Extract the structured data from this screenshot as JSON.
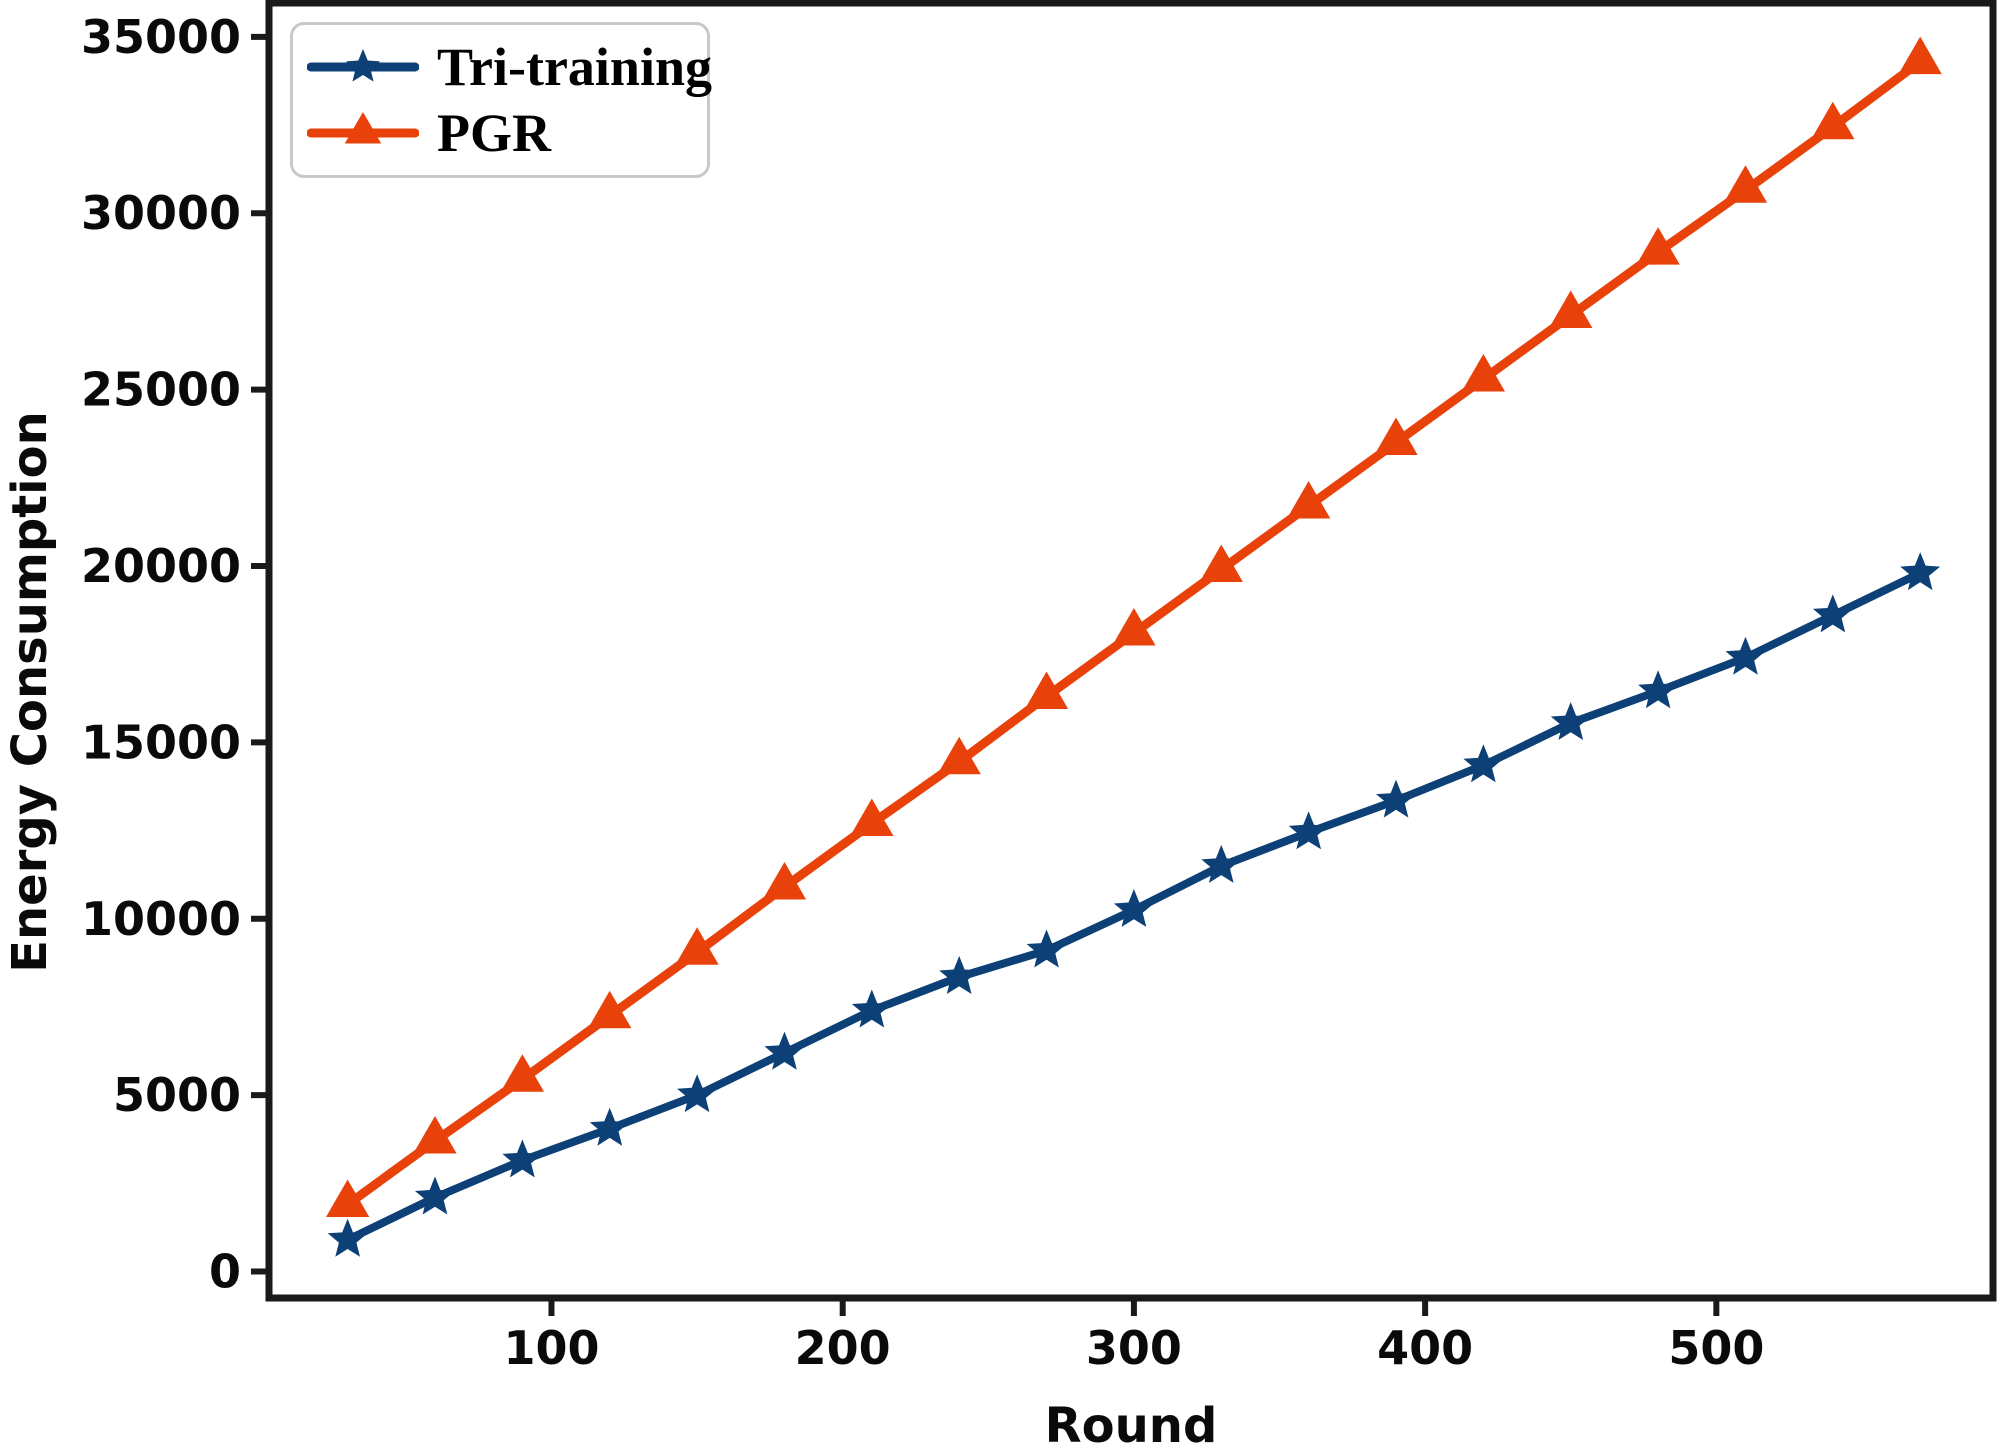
{
  "chart_data": {
    "type": "line",
    "title": "",
    "xlabel": "Round",
    "ylabel": "Energy Consumption",
    "x": [
      30,
      60,
      90,
      120,
      150,
      180,
      210,
      240,
      270,
      300,
      330,
      360,
      390,
      420,
      450,
      480,
      510,
      540,
      570
    ],
    "series": [
      {
        "name": "Tri-training",
        "color": "#0d4076",
        "marker": "star",
        "line_width": 8,
        "values": [
          900,
          2100,
          3150,
          4050,
          5000,
          6200,
          7400,
          8350,
          9100,
          10250,
          11500,
          12450,
          13350,
          14350,
          15550,
          16450,
          17400,
          18600,
          19800
        ]
      },
      {
        "name": "PGR",
        "color": "#e8420a",
        "marker": "triangle-up",
        "line_width": 9,
        "values": [
          1900,
          3700,
          5450,
          7250,
          9050,
          10900,
          12700,
          14450,
          16300,
          18100,
          19900,
          21700,
          23500,
          25300,
          27100,
          28900,
          30650,
          32450,
          34300
        ]
      }
    ],
    "x_ticks": [
      100,
      200,
      300,
      400,
      500
    ],
    "y_ticks": [
      0,
      5000,
      10000,
      15000,
      20000,
      25000,
      30000,
      35000
    ],
    "xlim": [
      3,
      595
    ],
    "ylim": [
      -750,
      35960
    ],
    "grid": false,
    "legend_position": "upper-left",
    "axis_color": "#1a1a1a",
    "tick_label_color": "#0a0a0a"
  }
}
